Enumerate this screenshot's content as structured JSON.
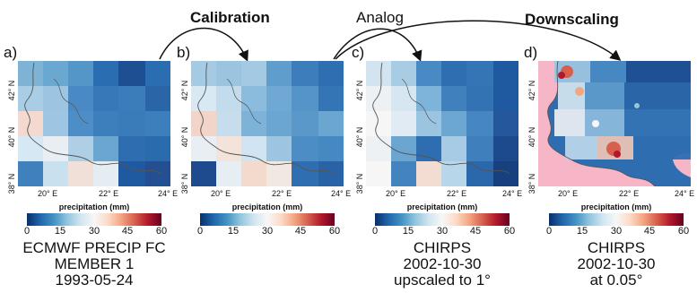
{
  "stages": {
    "calibration": "Calibration",
    "analog": "Analog",
    "downscaling": "Downscaling"
  },
  "panels": [
    {
      "label": "a)",
      "caption": [
        "ECMWF PRECIP FC",
        "MEMBER 1",
        "1993-05-24"
      ]
    },
    {
      "label": "b)",
      "caption": []
    },
    {
      "label": "c)",
      "caption": [
        "CHIRPS",
        "2002-10-30",
        "upscaled to 1°"
      ]
    },
    {
      "label": "d)",
      "caption": [
        "CHIRPS",
        "2002-10-30",
        "at 0.05°"
      ]
    }
  ],
  "axes": {
    "y_ticks": [
      "42° N",
      "40° N",
      "38° N"
    ],
    "x_ticks": [
      "20° E",
      "22° E",
      "24° E"
    ]
  },
  "colorbar": {
    "title": "precipitation (mm)",
    "ticks": [
      "0",
      "15",
      "30",
      "45",
      "60"
    ],
    "colors": [
      "#08306b",
      "#2166ac",
      "#4393c3",
      "#92c5de",
      "#d1e5f0",
      "#f7f7f7",
      "#fddbc7",
      "#f4a582",
      "#d6604d",
      "#b2182b",
      "#67001f"
    ]
  },
  "colors": {
    "land_mask": "#f7b6c8",
    "coast": "#555555"
  }
}
